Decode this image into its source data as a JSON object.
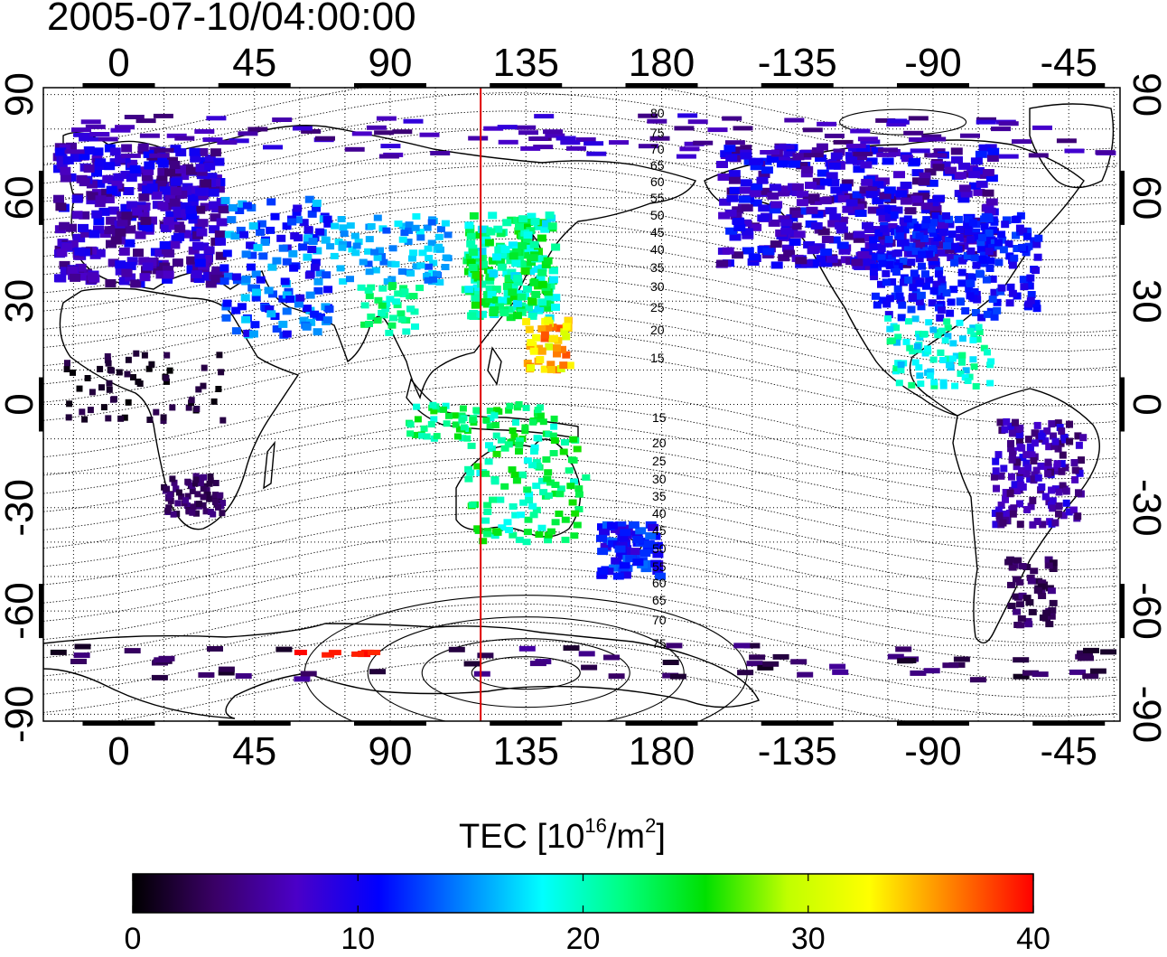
{
  "title": "2005-07-10/04:00:00",
  "map": {
    "top_lon_labels": [
      "0",
      "45",
      "90",
      "135",
      "180",
      "-135",
      "-90",
      "-45"
    ],
    "bottom_lon_labels": [
      "0",
      "45",
      "90",
      "135",
      "180",
      "-135",
      "-90",
      "-45"
    ],
    "left_lat_labels": [
      "90",
      "60",
      "30",
      "0",
      "-30",
      "-60",
      "-90"
    ],
    "right_lat_labels": [
      "90",
      "60",
      "30",
      "0",
      "-30",
      "-60",
      "-90"
    ],
    "lon_range": [
      -25,
      332
    ],
    "lat_range": [
      -92,
      92
    ],
    "meridian_marker_lon": 120,
    "meridian_marker_color": "#e00000",
    "contour_labels_north": [
      "80",
      "75",
      "70",
      "65",
      "60",
      "55",
      "50",
      "45",
      "40",
      "35",
      "30",
      "25",
      "20",
      "15"
    ],
    "contour_labels_south": [
      "15",
      "20",
      "25",
      "30",
      "35",
      "40",
      "45",
      "50",
      "55",
      "60",
      "65",
      "70",
      "75"
    ]
  },
  "legend": {
    "label": "TEC  [10",
    "exponent": "16",
    "unit_mid": "/m",
    "unit_exp": "2",
    "unit_end": "]",
    "min": 0,
    "max": 40,
    "ticks": [
      "0",
      "10",
      "20",
      "30",
      "40"
    ],
    "colors": [
      "#000000",
      "#3a0066",
      "#4b00c8",
      "#0000ff",
      "#0080ff",
      "#00ffff",
      "#00ff80",
      "#00e000",
      "#c0ff00",
      "#ffff00",
      "#ff8000",
      "#ff0000"
    ]
  }
}
